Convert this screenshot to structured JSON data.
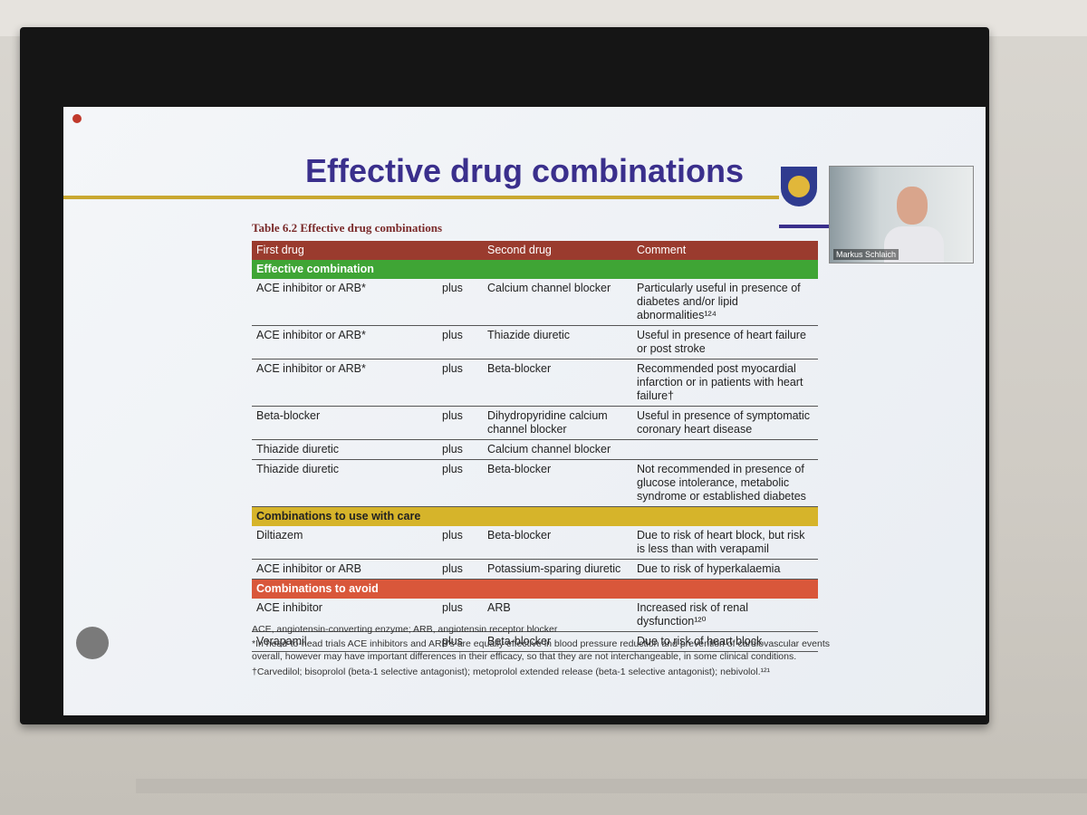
{
  "slide": {
    "title": "Effective drug combinations",
    "caption": "Table 6.2 Effective drug combinations",
    "presenter": "Markus Schlaich",
    "table": {
      "header": [
        "First drug",
        "",
        "Second drug",
        "Comment"
      ],
      "sections": [
        {
          "label": "Effective combination",
          "rows": [
            [
              "ACE inhibitor or ARB*",
              "plus",
              "Calcium channel blocker",
              "Particularly useful in presence of diabetes and/or lipid abnormalities¹²⁴"
            ],
            [
              "ACE inhibitor or ARB*",
              "plus",
              "Thiazide diuretic",
              "Useful in presence of heart failure or post stroke"
            ],
            [
              "ACE inhibitor or ARB*",
              "plus",
              "Beta-blocker",
              "Recommended post myocardial infarction or in patients with heart failure†"
            ],
            [
              "Beta-blocker",
              "plus",
              "Dihydropyridine calcium channel blocker",
              "Useful in presence of symptomatic coronary heart disease"
            ],
            [
              "Thiazide diuretic",
              "plus",
              "Calcium channel blocker",
              null
            ],
            [
              "Thiazide diuretic",
              "plus",
              "Beta-blocker",
              "Not recommended in presence of glucose intolerance, metabolic syndrome or established diabetes"
            ]
          ]
        },
        {
          "label": "Combinations to use with care",
          "rows": [
            [
              "Diltiazem",
              "plus",
              "Beta-blocker",
              "Due to risk of heart block, but risk is less than with verapamil"
            ],
            [
              "ACE inhibitor or ARB",
              "plus",
              "Potassium-sparing diuretic",
              "Due to risk of hyperkalaemia"
            ]
          ]
        },
        {
          "label": "Combinations to avoid",
          "rows": [
            [
              "ACE inhibitor",
              "plus",
              "ARB",
              "Increased risk of renal dysfunction¹²⁰"
            ],
            [
              "Verapamil",
              "plus",
              "Beta-blocker",
              "Due to risk of heart block"
            ]
          ]
        }
      ]
    },
    "notes": [
      "ACE, angiotensin-converting enzyme; ARB, angiotensin receptor blocker",
      "*In head-to-head trials ACE inhibitors and ARB's are equally effective in blood pressure reduction and prevention of cardiovascular events overall, however may have important differences in their efficacy, so that they are not interchangeable, in some clinical conditions.",
      "†Carvedilol; bisoprolol (beta-1 selective antagonist); metoprolol extended release (beta-1 selective antagonist); nebivolol.¹²¹"
    ]
  }
}
